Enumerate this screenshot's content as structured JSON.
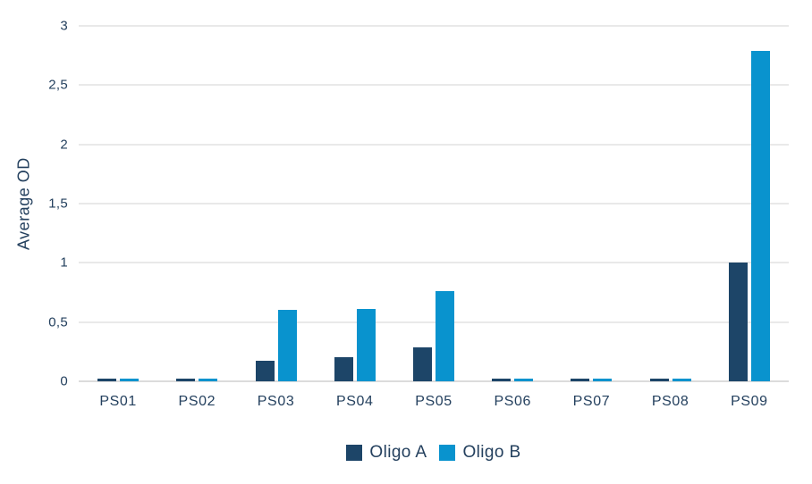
{
  "chart_data": {
    "type": "bar",
    "title": "",
    "xlabel": "",
    "ylabel": "Average OD",
    "ylim": [
      0,
      3
    ],
    "ytick_interval": 0.5,
    "ytick_labels": [
      "0",
      "0,5",
      "1",
      "1,5",
      "2",
      "2,5",
      "3"
    ],
    "decimal_separator": ",",
    "grid": "horizontal",
    "legend_position": "bottom",
    "categories": [
      "PS01",
      "PS02",
      "PS03",
      "PS04",
      "PS05",
      "PS06",
      "PS07",
      "PS08",
      "PS09"
    ],
    "series": [
      {
        "name": "Oligo A",
        "color": "#1D4568",
        "values": [
          0.02,
          0.02,
          0.17,
          0.2,
          0.29,
          0.02,
          0.02,
          0.02,
          1.0
        ]
      },
      {
        "name": "Oligo B",
        "color": "#0993CE",
        "values": [
          0.02,
          0.02,
          0.6,
          0.61,
          0.76,
          0.02,
          0.02,
          0.02,
          2.79
        ]
      }
    ]
  },
  "colors": {
    "background": "#FFFFFF",
    "text": "#24405E",
    "gridline": "#E9E9E9",
    "baseline": "#DCDCDC",
    "series_oligo_a": "#1D4568",
    "series_oligo_b": "#0993CE"
  }
}
